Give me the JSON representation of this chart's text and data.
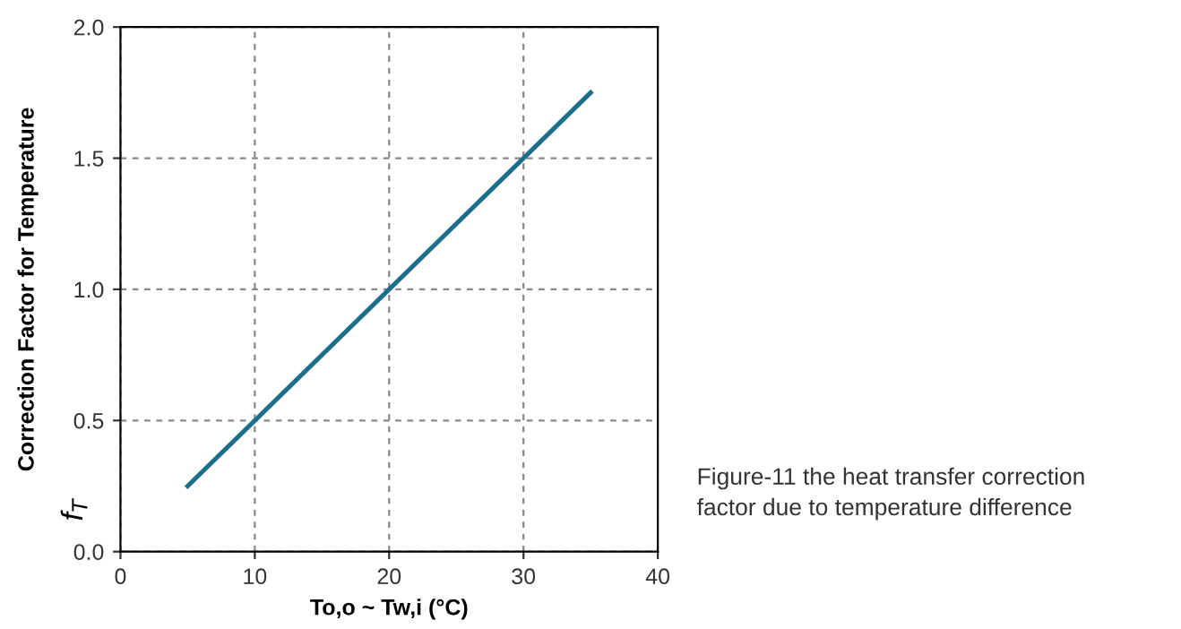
{
  "chart_data": {
    "type": "line",
    "x": [
      5,
      35
    ],
    "series": [
      {
        "color": "#1d6e8c",
        "values": [
          0.25,
          1.75
        ]
      }
    ],
    "xlabel": "To,o ~ Tw,i (°C)",
    "ylabel": "Correction Factor for Temperature",
    "xlim": [
      0,
      40
    ],
    "xticks": [
      0,
      10,
      20,
      30,
      40
    ],
    "ylim": [
      0,
      2.0
    ],
    "yticks": [
      {
        "value": 0,
        "label": "0.0"
      },
      0.5,
      {
        "value": 1,
        "label": "1.0"
      },
      1.5,
      {
        "value": 2,
        "label": "2.0"
      }
    ],
    "grid": true,
    "line_style": "solid",
    "marker": "none",
    "legend": false,
    "annotations": [
      "f$_{T}$",
      "Figure-11 the heat transfer correction\nfactor due to temperature difference"
    ]
  }
}
